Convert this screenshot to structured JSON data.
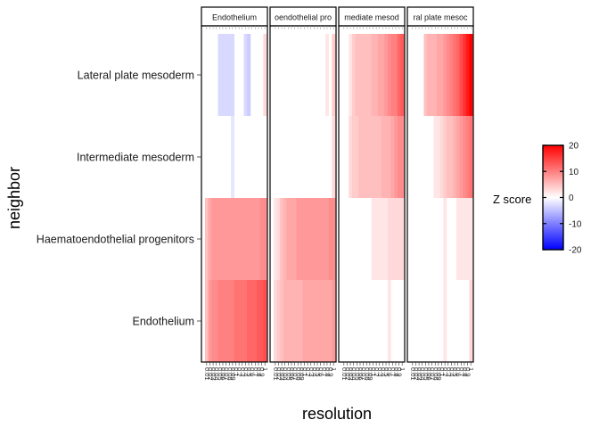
{
  "chart_data": {
    "type": "heatmap",
    "title": "",
    "xlabel": "resolution",
    "ylabel": "neighbor",
    "facets": [
      {
        "label": "Endothelium",
        "shown": "Endothelium"
      },
      {
        "label": "Haematoendothelial progenitors",
        "shown": "oendothelial pro"
      },
      {
        "label": "Intermediate mesoderm",
        "shown": "mediate mesod"
      },
      {
        "label": "Lateral plate mesoderm",
        "shown": "ral plate mesoc"
      }
    ],
    "rows": [
      "Lateral plate mesoderm",
      "Intermediate mesoderm",
      "Haematoendothelial progenitors",
      "Endothelium"
    ],
    "resolutions": [
      "0.01",
      "0.02",
      "0.03",
      "0.04",
      "0.05",
      "0.06",
      "0.07",
      "0.08",
      "0.09",
      "0.1",
      "0.2",
      "0.3",
      "0.4",
      "0.5",
      "0.6",
      "0.7",
      "0.8",
      "0.9",
      "1"
    ],
    "legend": {
      "title": "Z score",
      "ticks": [
        20,
        10,
        0,
        -10,
        -20
      ],
      "range": [
        -20,
        20
      ],
      "low": "#0000ff",
      "mid": "#ffffff",
      "high": "#ff0000",
      "position": "right"
    },
    "values": [
      [
        [
          0,
          0,
          0,
          0,
          -3,
          -3,
          -3,
          -3,
          -3,
          0,
          0,
          0,
          -3,
          -4,
          0,
          0,
          0,
          0,
          3
        ],
        [
          0,
          0,
          0,
          0,
          0,
          0,
          0,
          0,
          -2,
          0,
          0,
          0,
          0,
          0,
          0,
          0,
          0,
          0,
          0
        ],
        [
          5,
          7,
          8,
          8,
          8,
          8,
          8,
          8,
          8,
          8,
          8,
          8,
          8,
          8,
          8,
          8,
          8,
          9,
          9
        ],
        [
          5,
          8,
          9,
          9,
          10,
          10,
          10,
          10,
          10,
          11,
          11,
          11,
          11,
          12,
          12,
          12,
          13,
          13,
          14
        ]
      ],
      [
        [
          0,
          0,
          0,
          0,
          0,
          0,
          0,
          0,
          0,
          0,
          0,
          0,
          0,
          0,
          0,
          0,
          2,
          0,
          4
        ],
        [
          0,
          0,
          0,
          0,
          0,
          0,
          0,
          0,
          0,
          0,
          0,
          0,
          0,
          0,
          0,
          0,
          0,
          0,
          3
        ],
        [
          2,
          3,
          5,
          6,
          7,
          7,
          7,
          8,
          8,
          8,
          8,
          8,
          8,
          8,
          8,
          8,
          8,
          9,
          9
        ],
        [
          3,
          4,
          5,
          6,
          6,
          6,
          6,
          6,
          6,
          7,
          7,
          7,
          7,
          7,
          7,
          7,
          7,
          7,
          8
        ]
      ],
      [
        [
          0,
          0,
          2,
          4,
          5,
          5,
          5,
          5,
          5,
          6,
          6,
          7,
          7,
          8,
          9,
          10,
          10,
          12,
          13
        ],
        [
          0,
          0,
          3,
          4,
          4,
          5,
          5,
          5,
          5,
          5,
          5,
          5,
          6,
          6,
          6,
          7,
          8,
          9,
          9
        ],
        [
          0,
          0,
          0,
          0,
          0,
          0,
          0,
          0,
          0,
          2,
          2,
          2,
          2,
          2,
          3,
          3,
          3,
          3,
          3
        ],
        [
          0,
          0,
          0,
          0,
          0,
          0,
          0,
          0,
          0,
          0,
          0,
          0,
          0,
          0,
          2,
          0,
          0,
          0,
          0
        ]
      ],
      [
        [
          0,
          0,
          0,
          0,
          5,
          6,
          6,
          6,
          7,
          7,
          8,
          9,
          10,
          11,
          12,
          14,
          16,
          18,
          20
        ],
        [
          0,
          0,
          0,
          0,
          0,
          0,
          0,
          2,
          2,
          3,
          4,
          5,
          5,
          6,
          7,
          8,
          9,
          10,
          11
        ],
        [
          0,
          0,
          0,
          0,
          0,
          0,
          0,
          0,
          0,
          0,
          2,
          0,
          0,
          0,
          2,
          2,
          2,
          2,
          2
        ],
        [
          0,
          0,
          0,
          0,
          0,
          0,
          0,
          0,
          0,
          0,
          2,
          0,
          0,
          0,
          0,
          0,
          0,
          0,
          3
        ]
      ]
    ]
  }
}
